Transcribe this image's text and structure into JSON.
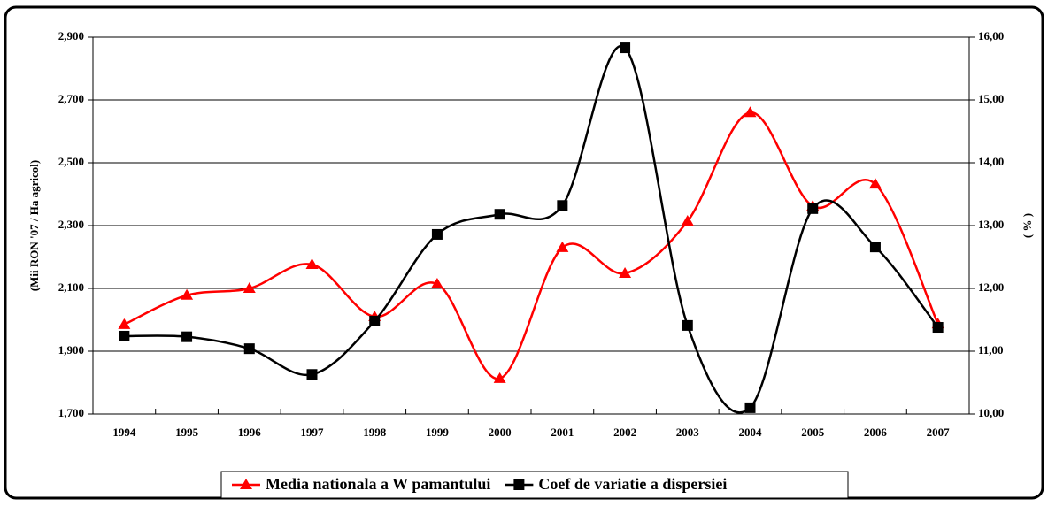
{
  "chart_data": {
    "type": "line",
    "y_label": "(Mii RON '07 / Ha agricol)",
    "y2_label": "( % )",
    "categories": [
      "1994",
      "1995",
      "1996",
      "1997",
      "1998",
      "1999",
      "2000",
      "2001",
      "2002",
      "2003",
      "2004",
      "2005",
      "2006",
      "2007"
    ],
    "series": [
      {
        "name": "Media nationala a W pamantului",
        "color": "#ff0000",
        "marker": "triangle",
        "axis": "y",
        "values": [
          1985,
          2078,
          2100,
          2176,
          2010,
          2114,
          1813,
          2230,
          2148,
          2314,
          2660,
          2362,
          2432,
          1987
        ]
      },
      {
        "name": "Coef de variatie a dispersiei",
        "color": "#000000",
        "marker": "square",
        "axis": "y2",
        "values": [
          11.24,
          11.23,
          11.04,
          10.63,
          11.48,
          12.86,
          13.18,
          13.32,
          15.83,
          11.41,
          10.1,
          13.27,
          12.66,
          11.38
        ]
      }
    ],
    "ylim": [
      1700,
      2900
    ],
    "yticks": [
      {
        "value": 1700,
        "label": "1,700"
      },
      {
        "value": 1900,
        "label": "1,900"
      },
      {
        "value": 2100,
        "label": "2,100"
      },
      {
        "value": 2300,
        "label": "2,300"
      },
      {
        "value": 2500,
        "label": "2,500"
      },
      {
        "value": 2700,
        "label": "2,700"
      },
      {
        "value": 2900,
        "label": "2,900"
      }
    ],
    "y2lim": [
      10,
      16
    ],
    "y2ticks": [
      {
        "value": 10,
        "label": "10,00"
      },
      {
        "value": 11,
        "label": "11,00"
      },
      {
        "value": 12,
        "label": "12,00"
      },
      {
        "value": 13,
        "label": "13,00"
      },
      {
        "value": 14,
        "label": "14,00"
      },
      {
        "value": 15,
        "label": "15,00"
      },
      {
        "value": 16,
        "label": "16,00"
      }
    ],
    "grid": true,
    "smooth": true,
    "legend": "bottom"
  }
}
